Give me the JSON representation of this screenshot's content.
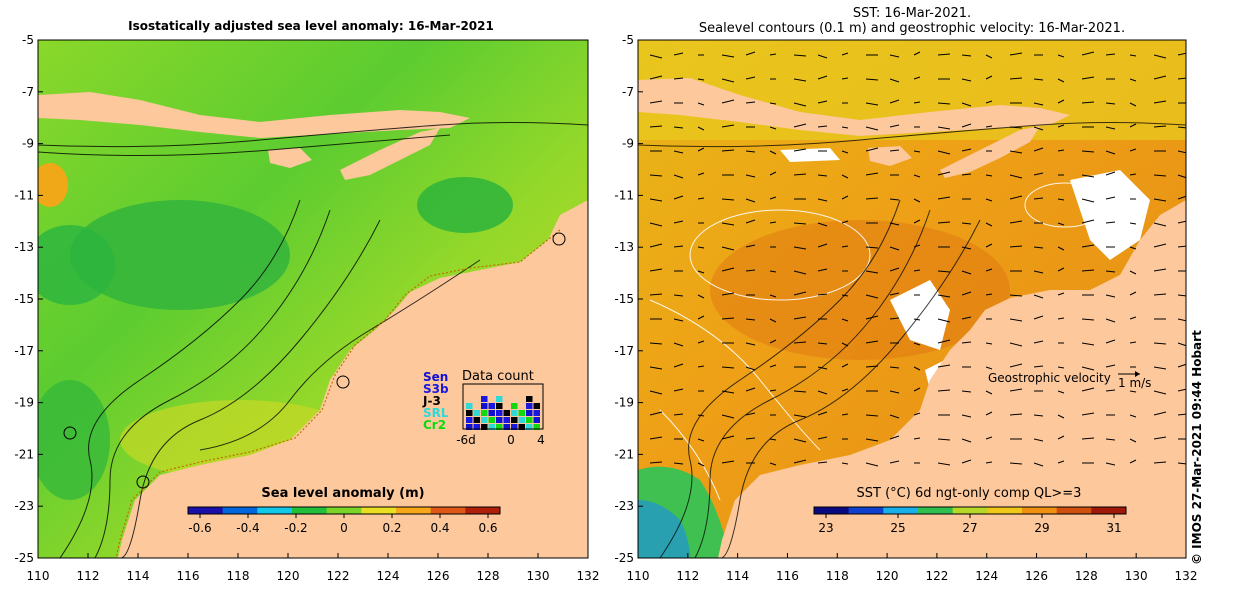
{
  "left_panel": {
    "title": "Isostatically adjusted sea level anomaly: 16-Mar-2021",
    "colorbar": {
      "label": "Sea level anomaly (m)",
      "ticks": [
        "-0.6",
        "-0.4",
        "-0.2",
        "0",
        "0.2",
        "0.4",
        "0.6"
      ],
      "colors": [
        "#1a0fa8",
        "#0066e0",
        "#11c8e8",
        "#22c03a",
        "#7ad528",
        "#e8e020",
        "#f7a818",
        "#e05818",
        "#b02008"
      ]
    },
    "data_count": {
      "title": "Data count",
      "missions": [
        "Sen",
        "S3b",
        "J-3",
        "SRL",
        "Cr2"
      ],
      "mission_colors": [
        "#1010d0",
        "#1818e0",
        "#000000",
        "#30d8d8",
        "#10d810"
      ],
      "x_ticks": [
        "-6d",
        "0",
        "4"
      ]
    }
  },
  "right_panel": {
    "title_line1": "SST: 16-Mar-2021.",
    "title_line2": "Sealevel contours (0.1 m) and geostrophic velocity: 16-Mar-2021.",
    "colorbar": {
      "label": "SST (°C) 6d ngt-only comp QL>=3",
      "ticks": [
        "23",
        "25",
        "27",
        "29",
        "31"
      ],
      "colors": [
        "#0a0a80",
        "#1040d0",
        "#18b0e8",
        "#30c050",
        "#b8d828",
        "#f0c818",
        "#f09010",
        "#d05010",
        "#a01808"
      ]
    },
    "velocity_legend": {
      "label": "Geostrophic velocity",
      "unit": "1 m/s"
    }
  },
  "axes": {
    "lat_ticks": [
      "-5",
      "-7",
      "-9",
      "-11",
      "-13",
      "-15",
      "-17",
      "-19",
      "-21",
      "-23",
      "-25"
    ],
    "lon_ticks": [
      "110",
      "112",
      "114",
      "116",
      "118",
      "120",
      "122",
      "124",
      "126",
      "128",
      "130",
      "132"
    ]
  },
  "credit": "©  IMOS 27-Mar-2021 09:44 Hobart",
  "colors": {
    "land": "#fcc89c",
    "slaa_green": "#7ad528",
    "sst_orange": "#f0a018"
  }
}
